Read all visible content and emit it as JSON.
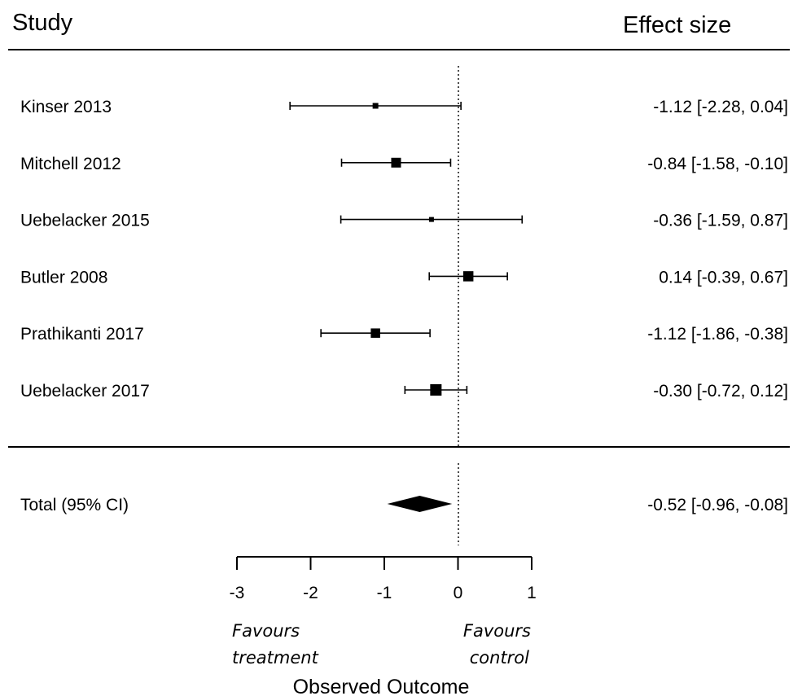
{
  "chart_data": {
    "type": "forest",
    "headers": {
      "study": "Study",
      "effect": "Effect size"
    },
    "xlabel": "Observed Outcome",
    "xlim": [
      -3,
      1
    ],
    "ticks": [
      -3,
      -2,
      -1,
      0,
      1
    ],
    "tick_labels": [
      "-3",
      "-2",
      "-1",
      "0",
      "1"
    ],
    "favours_left": [
      "Favours",
      "treatment"
    ],
    "favours_right": [
      "Favours",
      "control"
    ],
    "studies": [
      {
        "name": "Kinser 2013",
        "est": -1.12,
        "lo": -2.28,
        "hi": 0.04,
        "weight": 0.3,
        "label": "-1.12 [-2.28,  0.04]"
      },
      {
        "name": "Mitchell 2012",
        "est": -0.84,
        "lo": -1.58,
        "hi": -0.1,
        "weight": 0.8,
        "label": "-0.84 [-1.58, -0.10]"
      },
      {
        "name": "Uebelacker 2015",
        "est": -0.36,
        "lo": -1.59,
        "hi": 0.87,
        "weight": 0.2,
        "label": "-0.36 [-1.59,  0.87]"
      },
      {
        "name": "Butler 2008",
        "est": 0.14,
        "lo": -0.39,
        "hi": 0.67,
        "weight": 0.85,
        "label": "0.14 [-0.39,  0.67]"
      },
      {
        "name": "Prathikanti 2017",
        "est": -1.12,
        "lo": -1.86,
        "hi": -0.38,
        "weight": 0.75,
        "label": "-1.12 [-1.86, -0.38]"
      },
      {
        "name": "Uebelacker 2017",
        "est": -0.3,
        "lo": -0.72,
        "hi": 0.12,
        "weight": 1.0,
        "label": "-0.30 [-0.72,  0.12]"
      }
    ],
    "total": {
      "name": "Total (95% CI)",
      "est": -0.52,
      "lo": -0.96,
      "hi": -0.08,
      "label": "-0.52 [-0.96, -0.08]"
    }
  }
}
